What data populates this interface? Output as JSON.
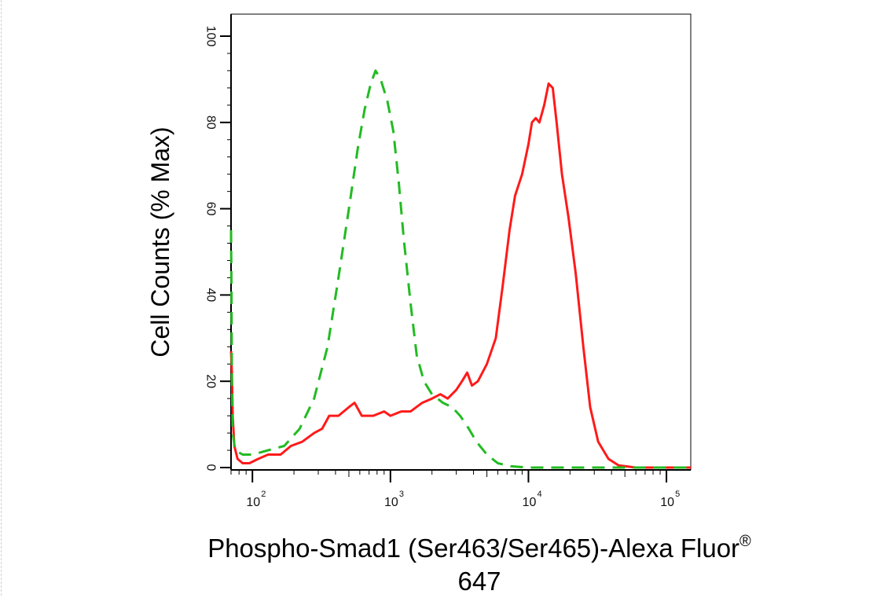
{
  "chart_data": {
    "type": "line",
    "xscale": "log",
    "xlim": [
      70,
      150000
    ],
    "ylim": [
      0,
      100
    ],
    "ylabel": "Cell Counts (% Max)",
    "xlabel_main": "Phospho-Smad1 (Ser463/Ser465)-Alexa Fluor",
    "xlabel_mark": "®",
    "xlabel_line2": "647",
    "yticks": [
      0,
      20,
      40,
      60,
      80,
      100
    ],
    "xticks": [
      {
        "value": 100,
        "base": "10",
        "exp": "2"
      },
      {
        "value": 1000,
        "base": "10",
        "exp": "3"
      },
      {
        "value": 10000,
        "base": "10",
        "exp": "4"
      },
      {
        "value": 100000,
        "base": "10",
        "exp": "5"
      }
    ],
    "grid": false,
    "series": [
      {
        "color": "#ff1a1a",
        "dash": "solid",
        "points": [
          [
            70,
            27
          ],
          [
            71,
            22
          ],
          [
            72,
            12
          ],
          [
            74,
            5
          ],
          [
            78,
            2
          ],
          [
            85,
            1
          ],
          [
            95,
            1
          ],
          [
            110,
            2
          ],
          [
            130,
            3
          ],
          [
            160,
            3
          ],
          [
            190,
            5
          ],
          [
            230,
            6
          ],
          [
            280,
            8
          ],
          [
            320,
            9
          ],
          [
            360,
            12
          ],
          [
            420,
            12
          ],
          [
            500,
            14
          ],
          [
            550,
            15
          ],
          [
            620,
            12
          ],
          [
            750,
            12
          ],
          [
            900,
            13
          ],
          [
            1000,
            12
          ],
          [
            1200,
            13
          ],
          [
            1400,
            13
          ],
          [
            1700,
            15
          ],
          [
            2000,
            16
          ],
          [
            2300,
            17
          ],
          [
            2600,
            16
          ],
          [
            3000,
            18
          ],
          [
            3300,
            20
          ],
          [
            3600,
            22
          ],
          [
            3900,
            19
          ],
          [
            4300,
            20
          ],
          [
            5000,
            24
          ],
          [
            5800,
            30
          ],
          [
            6500,
            42
          ],
          [
            7300,
            55
          ],
          [
            8000,
            63
          ],
          [
            9000,
            68
          ],
          [
            10000,
            75
          ],
          [
            10600,
            80
          ],
          [
            11300,
            81
          ],
          [
            12000,
            80
          ],
          [
            13000,
            84
          ],
          [
            14000,
            89
          ],
          [
            15000,
            88
          ],
          [
            16000,
            80
          ],
          [
            17500,
            68
          ],
          [
            19500,
            58
          ],
          [
            22000,
            45
          ],
          [
            25000,
            28
          ],
          [
            28000,
            14
          ],
          [
            32000,
            6
          ],
          [
            38000,
            2
          ],
          [
            45000,
            0.5
          ],
          [
            60000,
            0
          ],
          [
            100000,
            0
          ],
          [
            150000,
            0
          ]
        ]
      },
      {
        "color": "#22bb22",
        "dash": "dashed",
        "points": [
          [
            70,
            55
          ],
          [
            70.5,
            42
          ],
          [
            71,
            20
          ],
          [
            72,
            8
          ],
          [
            75,
            4
          ],
          [
            85,
            3
          ],
          [
            100,
            3
          ],
          [
            130,
            4
          ],
          [
            170,
            5
          ],
          [
            220,
            9
          ],
          [
            280,
            16
          ],
          [
            350,
            28
          ],
          [
            420,
            44
          ],
          [
            500,
            60
          ],
          [
            580,
            74
          ],
          [
            650,
            83
          ],
          [
            720,
            89
          ],
          [
            780,
            92
          ],
          [
            850,
            90
          ],
          [
            950,
            85
          ],
          [
            1050,
            78
          ],
          [
            1150,
            66
          ],
          [
            1250,
            53
          ],
          [
            1400,
            38
          ],
          [
            1550,
            26
          ],
          [
            1750,
            20
          ],
          [
            2000,
            17
          ],
          [
            2400,
            15
          ],
          [
            2800,
            14
          ],
          [
            3200,
            12
          ],
          [
            3700,
            9
          ],
          [
            4200,
            6
          ],
          [
            5000,
            3
          ],
          [
            6000,
            1
          ],
          [
            7500,
            0.3
          ],
          [
            10000,
            0
          ],
          [
            20000,
            0
          ],
          [
            150000,
            0
          ]
        ]
      }
    ]
  }
}
